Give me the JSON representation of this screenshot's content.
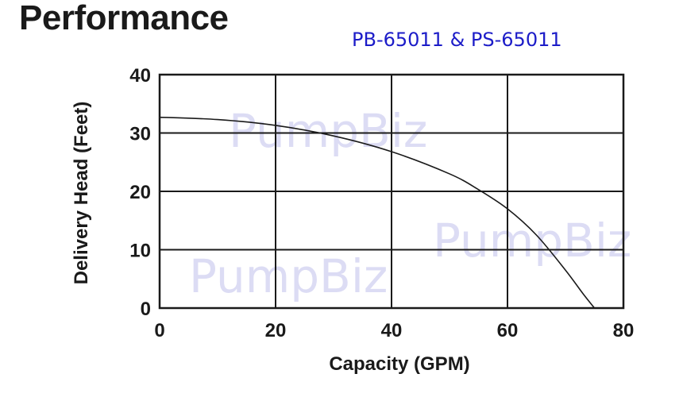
{
  "title": "Performance",
  "model": "PB-65011 & PS-65011",
  "watermark": "PumpBiz",
  "chart_data": {
    "type": "line",
    "title": "Performance",
    "subtitle": "PB-65011 & PS-65011",
    "xlabel": "Capacity (GPM)",
    "ylabel": "Delivery Head (Feet)",
    "xlim": [
      0,
      80
    ],
    "ylim": [
      0,
      40
    ],
    "xticks": [
      0,
      20,
      40,
      60,
      80
    ],
    "yticks": [
      0,
      10,
      20,
      30,
      40
    ],
    "grid": true,
    "series": [
      {
        "x": [
          0,
          10,
          20,
          30,
          40,
          50,
          55,
          60,
          65,
          70,
          73,
          75
        ],
        "y": [
          32.7,
          32.3,
          31.3,
          29.5,
          26.8,
          23.0,
          20.3,
          17.0,
          12.5,
          6.5,
          2.5,
          0
        ]
      }
    ]
  }
}
